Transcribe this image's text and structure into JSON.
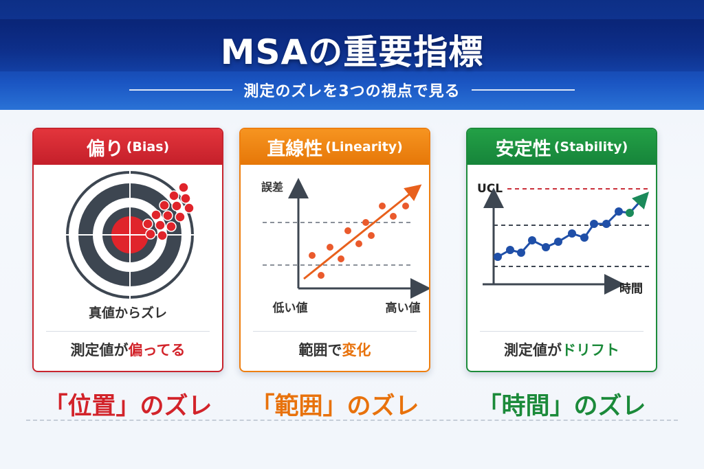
{
  "header": {
    "title": "MSAの重要指標",
    "subtitle": "測定のズレを3つの視点で見る"
  },
  "cards": [
    {
      "title": "偏り",
      "title_en": "(Bias)",
      "graphic_label": "真値からズレ",
      "caption_prefix": "測定値が",
      "caption_highlight": "偏ってる",
      "bottom_main": "「位置」",
      "bottom_suffix": "のズレ",
      "color": "#d2232a"
    },
    {
      "title": "直線性",
      "title_en": "(Linearity)",
      "y_axis_label": "誤差",
      "x_low_label": "低い値",
      "x_high_label": "高い値",
      "caption_prefix": "範囲で",
      "caption_highlight": "変化",
      "bottom_main": "「範囲」",
      "bottom_suffix": "のズレ",
      "color": "#e8720c"
    },
    {
      "title": "安定性",
      "title_en": "(Stability)",
      "ucl_label": "UCL",
      "x_axis_label": "時間",
      "caption_prefix": "測定値が",
      "caption_highlight": "ドリフト",
      "bottom_main": "「時間」",
      "bottom_suffix": "のズレ",
      "color": "#1b8a3a"
    }
  ],
  "icons": [
    "target-icon",
    "linearity-chart-icon",
    "stability-chart-icon"
  ]
}
